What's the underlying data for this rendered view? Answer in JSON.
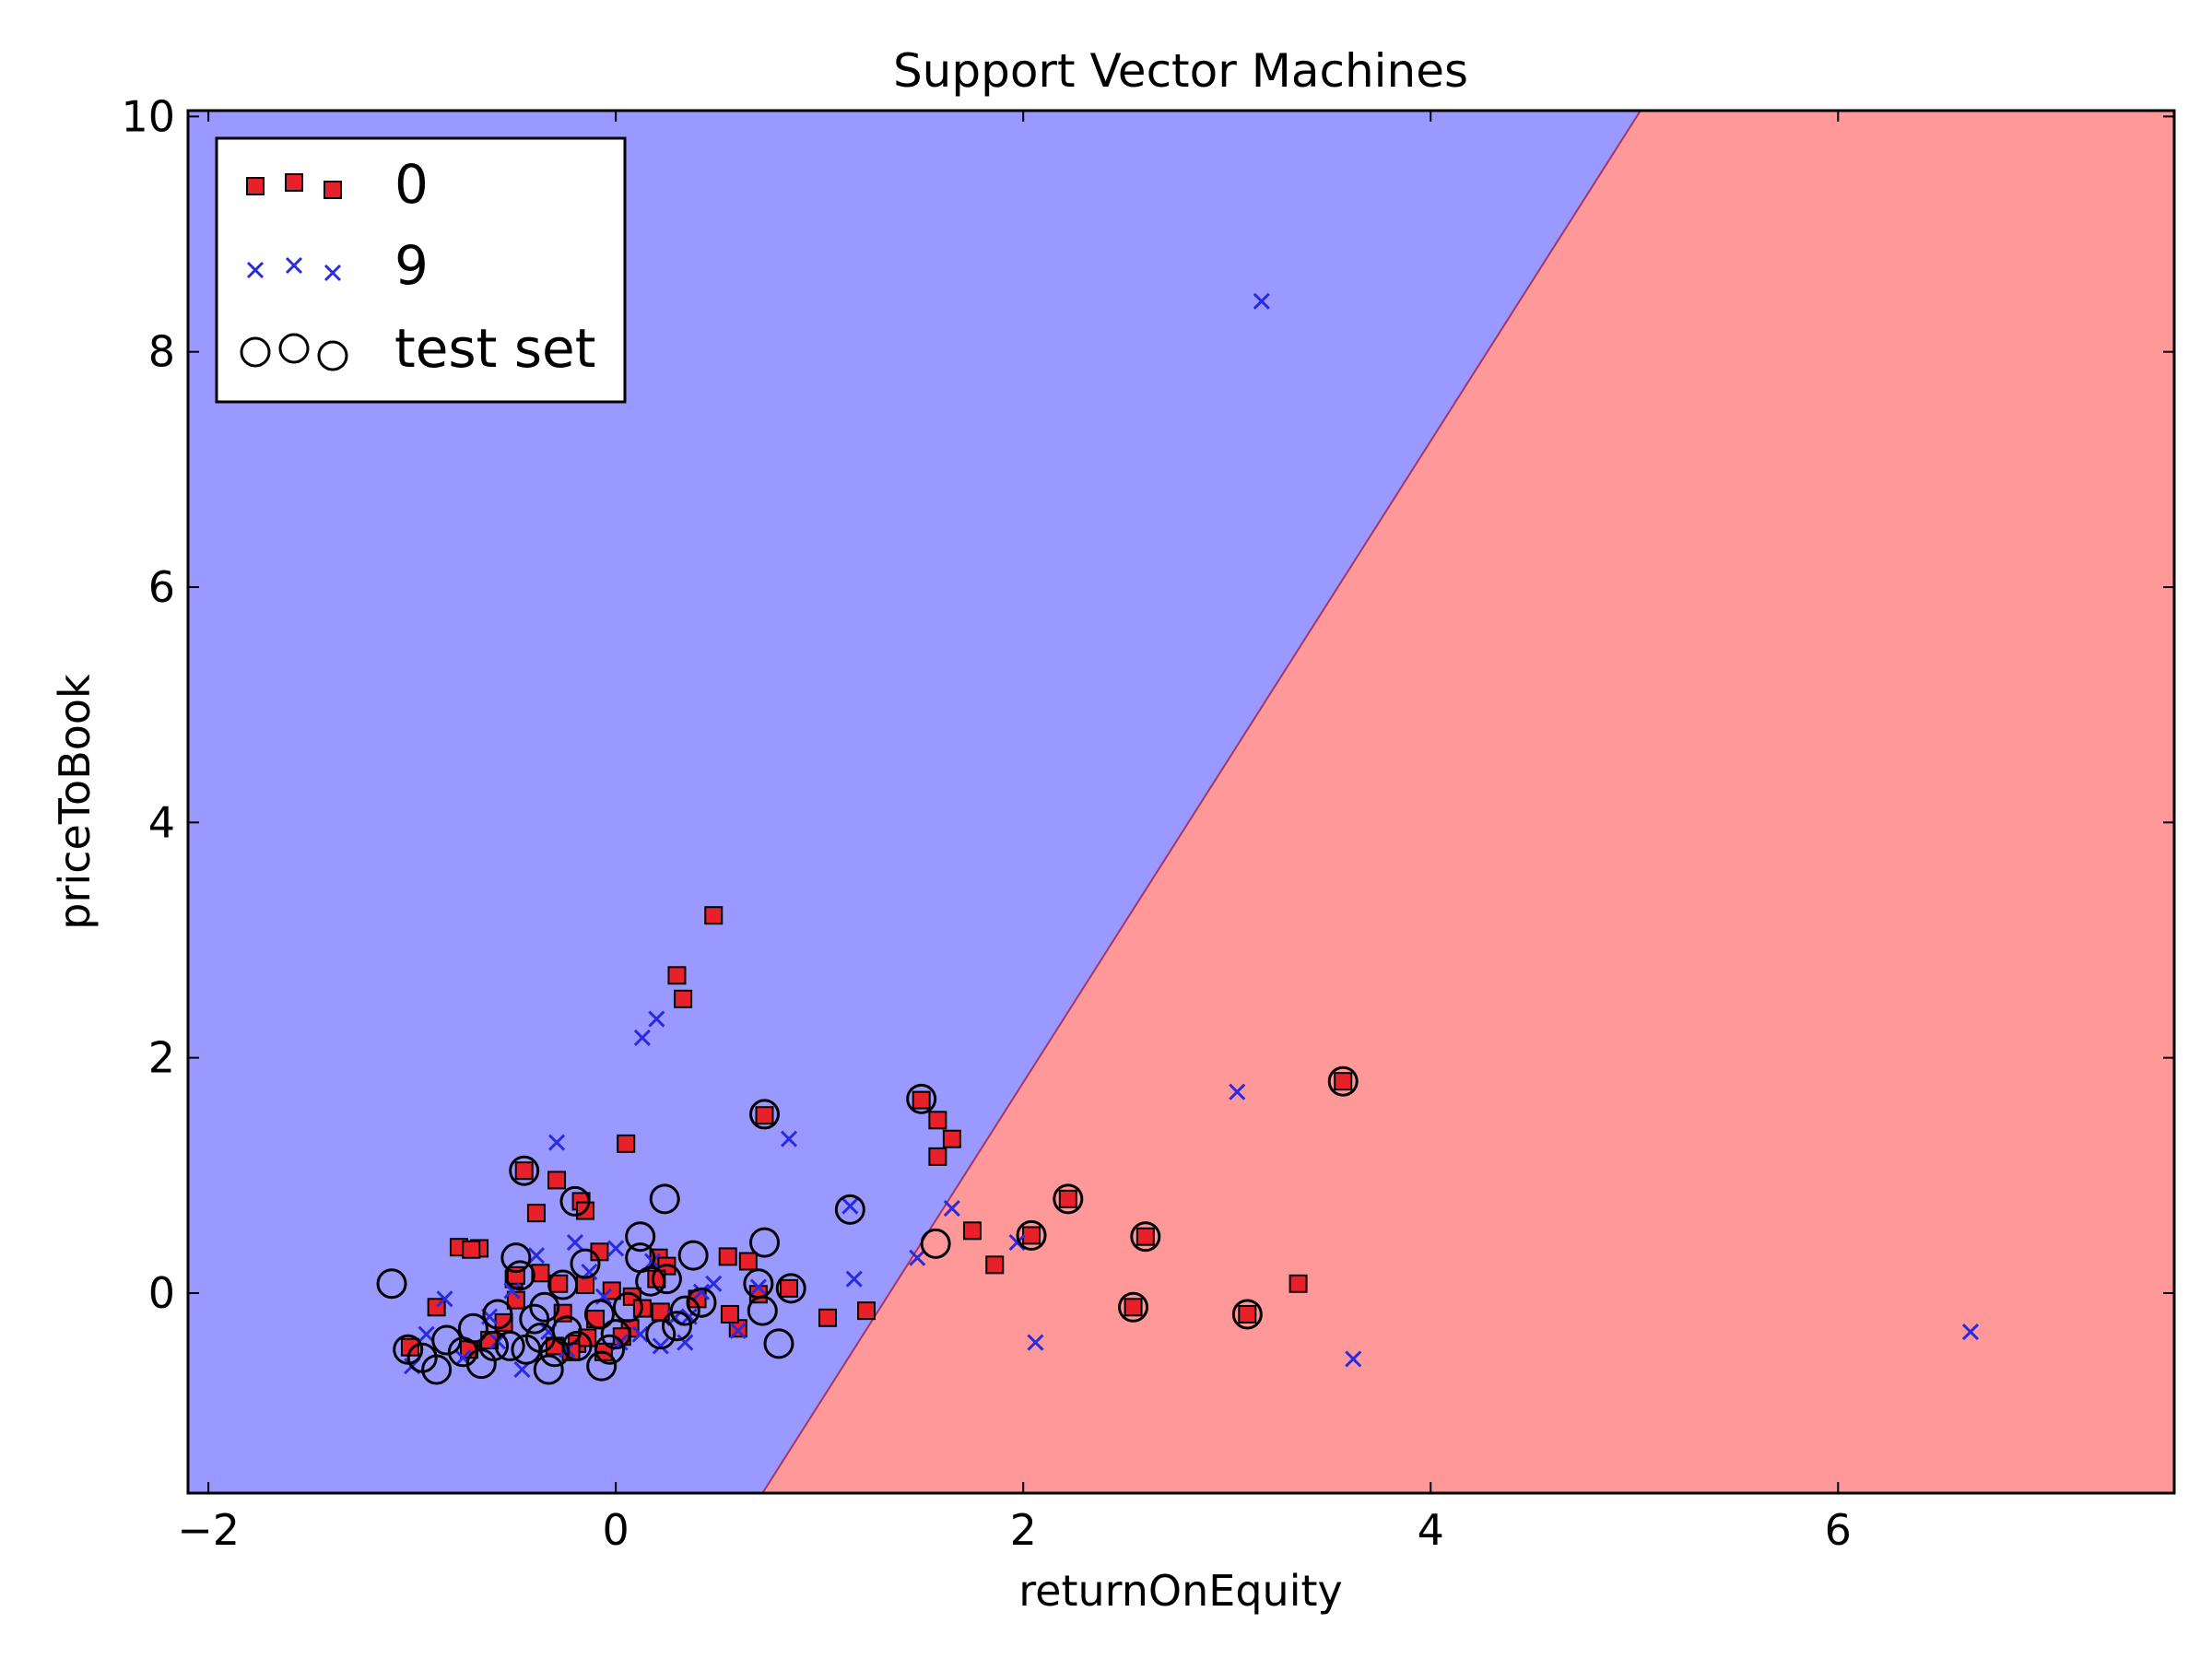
{
  "chart_data": {
    "type": "scatter",
    "title": "Support Vector Machines",
    "xlabel": "returnOnEquity",
    "ylabel": "priceToBook",
    "xlim": [
      -2.1,
      7.65
    ],
    "ylim": [
      -1.7,
      10.05
    ],
    "x_ticks": [
      -2,
      0,
      2,
      4,
      6
    ],
    "y_ticks": [
      0,
      2,
      4,
      6,
      8,
      10
    ],
    "x_tick_labels": [
      "−2",
      "0",
      "2",
      "4",
      "6"
    ],
    "y_tick_labels": [
      "0",
      "2",
      "4",
      "6",
      "8",
      "10"
    ],
    "grid": false,
    "legend_position": "top-left",
    "decision_regions": {
      "boundary": [
        [
          0.72,
          -1.7
        ],
        [
          5.03,
          10.05
        ]
      ],
      "left_class": "9",
      "right_class": "0",
      "left_color": "#9999ff",
      "right_color": "#ff9999"
    },
    "series": [
      {
        "name": "0",
        "marker": "square",
        "color": "#e8202a",
        "points": [
          [
            0.48,
            3.21
          ],
          [
            0.3,
            2.7
          ],
          [
            0.33,
            2.5
          ],
          [
            0.05,
            1.27
          ],
          [
            0.73,
            1.51
          ],
          [
            1.5,
            1.64
          ],
          [
            1.58,
            1.47
          ],
          [
            1.65,
            1.31
          ],
          [
            1.58,
            1.16
          ],
          [
            -0.29,
            0.96
          ],
          [
            -0.45,
            1.04
          ],
          [
            -0.39,
            0.68
          ],
          [
            -0.17,
            0.78
          ],
          [
            -0.15,
            0.7
          ],
          [
            -0.77,
            0.39
          ],
          [
            -0.67,
            0.38
          ],
          [
            -0.71,
            0.37
          ],
          [
            -0.08,
            0.35
          ],
          [
            0.21,
            0.3
          ],
          [
            0.25,
            0.23
          ],
          [
            0.55,
            0.31
          ],
          [
            0.65,
            0.27
          ],
          [
            1.75,
            0.53
          ],
          [
            1.86,
            0.24
          ],
          [
            2.04,
            0.49
          ],
          [
            2.22,
            0.8
          ],
          [
            2.6,
            0.48
          ],
          [
            3.57,
            1.8
          ],
          [
            3.35,
            0.08
          ],
          [
            2.54,
            -0.12
          ],
          [
            3.1,
            -0.18
          ],
          [
            0.85,
            0.04
          ],
          [
            1.23,
            -0.15
          ],
          [
            1.04,
            -0.21
          ],
          [
            0.7,
            -0.01
          ],
          [
            0.6,
            -0.3
          ],
          [
            0.56,
            -0.18
          ],
          [
            0.4,
            -0.05
          ],
          [
            0.22,
            -0.16
          ],
          [
            0.08,
            -0.03
          ],
          [
            0.07,
            -0.3
          ],
          [
            -0.28,
            0.08
          ],
          [
            -0.26,
            -0.17
          ],
          [
            -0.15,
            0.07
          ],
          [
            -0.5,
            0.12
          ],
          [
            -0.49,
            -0.06
          ],
          [
            -0.55,
            -0.25
          ],
          [
            -0.62,
            -0.4
          ],
          [
            -0.19,
            -0.43
          ],
          [
            -0.72,
            -0.48
          ],
          [
            -0.88,
            -0.12
          ],
          [
            -1.01,
            -0.46
          ],
          [
            -0.3,
            -0.45
          ],
          [
            0.03,
            -0.37
          ],
          [
            -0.02,
            0.02
          ],
          [
            -0.1,
            -0.22
          ],
          [
            -0.14,
            -0.38
          ],
          [
            -0.22,
            -0.5
          ],
          [
            -0.06,
            -0.5
          ],
          [
            -0.37,
            0.17
          ],
          [
            -0.49,
            0.15
          ],
          [
            0.13,
            -0.13
          ],
          [
            0.2,
            0.12
          ]
        ]
      },
      {
        "name": "9",
        "marker": "x",
        "color": "#2a2ae0",
        "points": [
          [
            3.17,
            8.43
          ],
          [
            3.05,
            1.71
          ],
          [
            0.13,
            2.17
          ],
          [
            0.2,
            2.33
          ],
          [
            0.85,
            1.31
          ],
          [
            -0.29,
            1.28
          ],
          [
            1.15,
            0.74
          ],
          [
            1.65,
            0.72
          ],
          [
            1.97,
            0.43
          ],
          [
            1.48,
            0.3
          ],
          [
            2.06,
            -0.42
          ],
          [
            3.62,
            -0.56
          ],
          [
            6.65,
            -0.33
          ],
          [
            1.17,
            0.12
          ],
          [
            0.7,
            0.05
          ],
          [
            0.6,
            -0.32
          ],
          [
            0.42,
            0.01
          ],
          [
            0.36,
            -0.2
          ],
          [
            0.48,
            0.08
          ],
          [
            0.18,
            0.27
          ],
          [
            0.12,
            -0.35
          ],
          [
            0.0,
            0.38
          ],
          [
            -0.2,
            0.43
          ],
          [
            -0.13,
            0.18
          ],
          [
            -0.39,
            0.32
          ],
          [
            -0.51,
            0.02
          ],
          [
            -0.62,
            -0.2
          ],
          [
            -0.58,
            -0.41
          ],
          [
            -0.84,
            -0.05
          ],
          [
            -0.93,
            -0.35
          ],
          [
            -1.0,
            -0.62
          ],
          [
            -0.75,
            -0.55
          ],
          [
            -0.46,
            -0.65
          ],
          [
            -0.24,
            -0.48
          ],
          [
            -0.33,
            -0.33
          ],
          [
            0.02,
            -0.42
          ],
          [
            0.22,
            -0.45
          ],
          [
            0.29,
            -0.21
          ],
          [
            0.34,
            -0.42
          ],
          [
            -0.06,
            -0.03
          ]
        ]
      }
    ],
    "test_set": {
      "name": "test set",
      "marker": "circle",
      "points": [
        [
          -1.1,
          0.08
        ],
        [
          -1.02,
          -0.48
        ],
        [
          -0.95,
          -0.55
        ],
        [
          -0.88,
          -0.65
        ],
        [
          -0.83,
          -0.4
        ],
        [
          -0.75,
          -0.5
        ],
        [
          -0.7,
          -0.3
        ],
        [
          -0.66,
          -0.6
        ],
        [
          -0.6,
          -0.45
        ],
        [
          -0.58,
          -0.18
        ],
        [
          -0.52,
          -0.45
        ],
        [
          -0.49,
          0.3
        ],
        [
          -0.47,
          0.15
        ],
        [
          -0.44,
          -0.48
        ],
        [
          -0.4,
          -0.22
        ],
        [
          -0.37,
          -0.38
        ],
        [
          -0.35,
          -0.12
        ],
        [
          -0.33,
          -0.65
        ],
        [
          -0.3,
          -0.5
        ],
        [
          -0.26,
          0.07
        ],
        [
          -0.24,
          -0.32
        ],
        [
          -0.19,
          -0.45
        ],
        [
          -0.15,
          0.25
        ],
        [
          -0.08,
          -0.18
        ],
        [
          -0.07,
          -0.62
        ],
        [
          -0.03,
          -0.48
        ],
        [
          0.0,
          -0.35
        ],
        [
          0.06,
          -0.12
        ],
        [
          0.12,
          0.3
        ],
        [
          0.12,
          0.48
        ],
        [
          0.17,
          0.1
        ],
        [
          0.22,
          -0.35
        ],
        [
          0.25,
          0.12
        ],
        [
          0.3,
          -0.28
        ],
        [
          0.34,
          -0.15
        ],
        [
          0.38,
          0.32
        ],
        [
          0.42,
          -0.08
        ],
        [
          0.7,
          0.08
        ],
        [
          0.72,
          -0.15
        ],
        [
          0.73,
          0.43
        ],
        [
          0.8,
          -0.43
        ],
        [
          0.86,
          0.04
        ],
        [
          0.73,
          1.52
        ],
        [
          1.15,
          0.71
        ],
        [
          1.5,
          1.65
        ],
        [
          1.57,
          0.42
        ],
        [
          2.04,
          0.49
        ],
        [
          2.22,
          0.8
        ],
        [
          2.54,
          -0.12
        ],
        [
          2.6,
          0.48
        ],
        [
          3.1,
          -0.18
        ],
        [
          3.57,
          1.8
        ],
        [
          -0.45,
          1.04
        ],
        [
          -0.2,
          0.78
        ],
        [
          0.24,
          0.8
        ]
      ]
    }
  }
}
